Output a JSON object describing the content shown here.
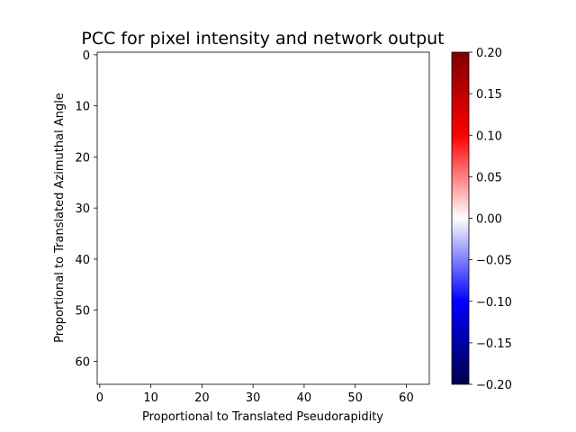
{
  "chart_data": {
    "type": "heatmap",
    "title": "PCC for pixel intensity and network output",
    "xlabel": "Proportional to Translated Pseudorapidity",
    "ylabel": "Proportional to Translated Azimuthal Angle",
    "grid": false,
    "xlim": [
      -0.5,
      64.5
    ],
    "ylim": [
      64.5,
      -0.5
    ],
    "x_ticks": [
      0,
      10,
      20,
      30,
      40,
      50,
      60
    ],
    "y_ticks": [
      0,
      10,
      20,
      30,
      40,
      50,
      60
    ],
    "values": "all near 0.00 (image renders uniformly white)",
    "colorbar": {
      "colormap": "seismic",
      "range": [
        -0.2,
        0.2
      ],
      "ticks": [
        0.2,
        0.15,
        0.1,
        0.05,
        0.0,
        -0.05,
        -0.1,
        -0.15,
        -0.2
      ],
      "tick_labels": [
        "0.20",
        "0.15",
        "0.10",
        "0.05",
        "0.00",
        "−0.05",
        "−0.10",
        "−0.15",
        "−0.20"
      ],
      "colors": [
        "#00004c",
        "#0000ff",
        "#ffffff",
        "#ff0000",
        "#7f0000"
      ]
    }
  }
}
